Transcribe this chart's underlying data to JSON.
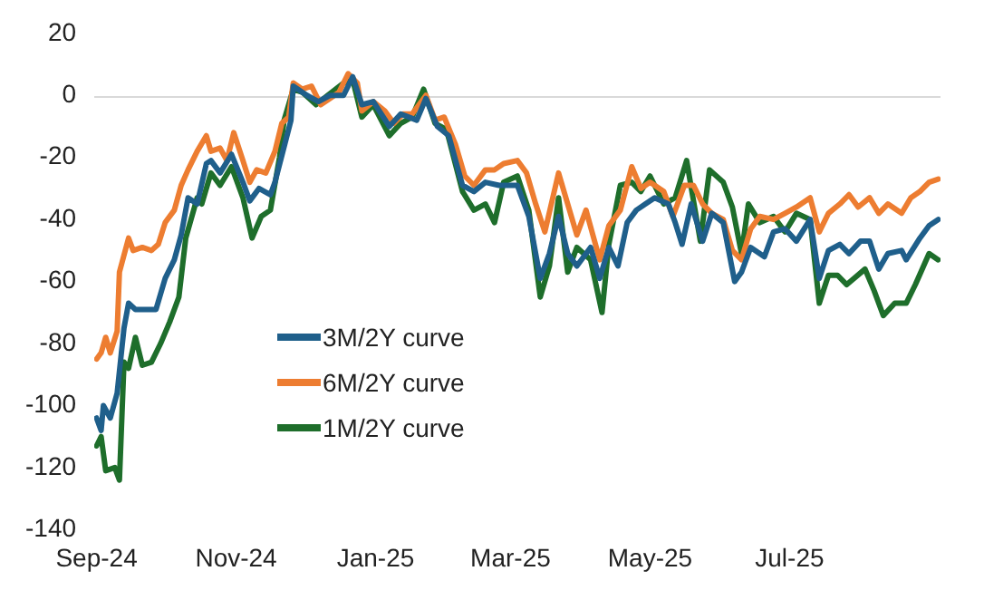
{
  "chart_data": {
    "type": "line",
    "xlim": [
      "2024-08-31",
      "2025-09-05"
    ],
    "xticks": [
      {
        "value": "2024-09-01",
        "label": "Sep-24"
      },
      {
        "value": "2024-11-01",
        "label": "Nov-24"
      },
      {
        "value": "2025-01-01",
        "label": "Jan-25"
      },
      {
        "value": "2025-03-01",
        "label": "Mar-25"
      },
      {
        "value": "2025-05-01",
        "label": "May-25"
      },
      {
        "value": "2025-07-01",
        "label": "Jul-25"
      }
    ],
    "ylim": [
      -140,
      20
    ],
    "yticks": [
      -140,
      -120,
      -100,
      -80,
      -60,
      -40,
      -20,
      0,
      20
    ],
    "grid": false,
    "ref_lines": [
      {
        "axis": "y",
        "value": 0,
        "color": "#d9d9d9"
      }
    ],
    "legend": "bottom left",
    "marker": "none",
    "line_style": "solid",
    "series": [
      {
        "name": "3M/2Y curve",
        "color": "#1f5f8b",
        "x": [
          "2024-09-01",
          "2024-09-03",
          "2024-09-04",
          "2024-09-07",
          "2024-09-10",
          "2024-09-13",
          "2024-09-15",
          "2024-09-18",
          "2024-09-23",
          "2024-09-27",
          "2024-10-01",
          "2024-10-05",
          "2024-10-08",
          "2024-10-11",
          "2024-10-15",
          "2024-10-19",
          "2024-10-21",
          "2024-10-25",
          "2024-10-30",
          "2024-11-04",
          "2024-11-07",
          "2024-11-11",
          "2024-11-16",
          "2024-11-18",
          "2024-11-25",
          "2024-11-26",
          "2024-12-02",
          "2024-12-07",
          "2024-12-12",
          "2024-12-18",
          "2024-12-22",
          "2024-12-26",
          "2024-12-31",
          "2025-01-07",
          "2025-01-12",
          "2025-01-19",
          "2025-01-23",
          "2025-01-28",
          "2025-02-02",
          "2025-02-08",
          "2025-02-13",
          "2025-02-18",
          "2025-02-24",
          "2025-03-04",
          "2025-03-09",
          "2025-03-14",
          "2025-03-18",
          "2025-03-22",
          "2025-03-26",
          "2025-03-30",
          "2025-04-05",
          "2025-04-09",
          "2025-04-13",
          "2025-04-17",
          "2025-04-21",
          "2025-04-25",
          "2025-04-29",
          "2025-05-03",
          "2025-05-09",
          "2025-05-12",
          "2025-05-15",
          "2025-05-19",
          "2025-05-24",
          "2025-05-28",
          "2025-06-02",
          "2025-06-07",
          "2025-06-10",
          "2025-06-14",
          "2025-06-20",
          "2025-06-24",
          "2025-06-29",
          "2025-07-04",
          "2025-07-10",
          "2025-07-14",
          "2025-07-18",
          "2025-07-23",
          "2025-07-27",
          "2025-08-01",
          "2025-08-05",
          "2025-08-09",
          "2025-08-13",
          "2025-08-19",
          "2025-08-21",
          "2025-08-27",
          "2025-08-31",
          "2025-09-04"
        ],
        "values": [
          -104,
          -108,
          -100,
          -104,
          -96,
          -75,
          -67,
          -69,
          -69,
          -69,
          -59,
          -53,
          -45,
          -33,
          -35,
          -22,
          -21,
          -25,
          -19,
          -28,
          -34,
          -30,
          -32,
          -28,
          -8,
          3,
          0,
          -2,
          0,
          0,
          6,
          -3,
          -2,
          -10,
          -6,
          -8,
          -1,
          -10,
          -13,
          -29,
          -31,
          -28,
          -29,
          -29,
          -39,
          -59,
          -51,
          -39,
          -51,
          -55,
          -49,
          -59,
          -49,
          -55,
          -41,
          -37,
          -35,
          -33,
          -35,
          -41,
          -48,
          -35,
          -47,
          -38,
          -41,
          -60,
          -57,
          -49,
          -52,
          -44,
          -43,
          -47,
          -40,
          -59,
          -50,
          -48,
          -51,
          -47,
          -47,
          -56,
          -51,
          -50,
          -53,
          -46,
          -42,
          -40
        ]
      },
      {
        "name": "6M/2Y curve",
        "color": "#ed7d31",
        "x": [
          "2024-09-01",
          "2024-09-03",
          "2024-09-05",
          "2024-09-07",
          "2024-09-10",
          "2024-09-11",
          "2024-09-15",
          "2024-09-17",
          "2024-09-21",
          "2024-09-25",
          "2024-09-28",
          "2024-10-01",
          "2024-10-05",
          "2024-10-08",
          "2024-10-11",
          "2024-10-15",
          "2024-10-19",
          "2024-10-21",
          "2024-10-25",
          "2024-10-28",
          "2024-10-31",
          "2024-11-04",
          "2024-11-07",
          "2024-11-10",
          "2024-11-14",
          "2024-11-18",
          "2024-11-21",
          "2024-11-24",
          "2024-11-26",
          "2024-11-30",
          "2024-12-04",
          "2024-12-08",
          "2024-12-12",
          "2024-12-16",
          "2024-12-20",
          "2024-12-24",
          "2024-12-26",
          "2024-12-31",
          "2025-01-05",
          "2025-01-09",
          "2025-01-13",
          "2025-01-17",
          "2025-01-23",
          "2025-01-27",
          "2025-01-31",
          "2025-02-05",
          "2025-02-09",
          "2025-02-13",
          "2025-02-18",
          "2025-02-22",
          "2025-02-26",
          "2025-03-04",
          "2025-03-08",
          "2025-03-12",
          "2025-03-16",
          "2025-03-22",
          "2025-03-26",
          "2025-03-30",
          "2025-04-03",
          "2025-04-09",
          "2025-04-13",
          "2025-04-18",
          "2025-04-23",
          "2025-04-27",
          "2025-05-01",
          "2025-05-07",
          "2025-05-11",
          "2025-05-16",
          "2025-05-20",
          "2025-05-24",
          "2025-05-28",
          "2025-06-02",
          "2025-06-06",
          "2025-06-10",
          "2025-06-14",
          "2025-06-18",
          "2025-06-24",
          "2025-06-29",
          "2025-07-04",
          "2025-07-10",
          "2025-07-14",
          "2025-07-18",
          "2025-07-23",
          "2025-07-27",
          "2025-07-31",
          "2025-08-05",
          "2025-08-09",
          "2025-08-13",
          "2025-08-19",
          "2025-08-23",
          "2025-08-27",
          "2025-08-31",
          "2025-09-04"
        ],
        "values": [
          -85,
          -83,
          -78,
          -83,
          -76,
          -57,
          -46,
          -50,
          -49,
          -50,
          -48,
          -41,
          -37,
          -29,
          -24,
          -18,
          -13,
          -18,
          -17,
          -21,
          -12,
          -21,
          -28,
          -24,
          -25,
          -18,
          -9,
          -7,
          4,
          2,
          3,
          -3,
          -1,
          1,
          7,
          4,
          -5,
          -2,
          -5,
          -9,
          -6,
          -6,
          0,
          -8,
          -7,
          -16,
          -26,
          -29,
          -24,
          -24,
          -22,
          -21,
          -25,
          -35,
          -44,
          -25,
          -35,
          -45,
          -37,
          -53,
          -42,
          -37,
          -23,
          -30,
          -28,
          -31,
          -39,
          -29,
          -29,
          -35,
          -38,
          -40,
          -50,
          -53,
          -43,
          -39,
          -40,
          -38,
          -36,
          -33,
          -44,
          -38,
          -35,
          -32,
          -36,
          -33,
          -38,
          -35,
          -38,
          -33,
          -31,
          -28,
          -27
        ]
      },
      {
        "name": "1M/2Y curve",
        "color": "#1e6e2b",
        "x": [
          "2024-09-01",
          "2024-09-03",
          "2024-09-05",
          "2024-09-09",
          "2024-09-11",
          "2024-09-13",
          "2024-09-15",
          "2024-09-18",
          "2024-09-21",
          "2024-09-25",
          "2024-09-29",
          "2024-10-03",
          "2024-10-07",
          "2024-10-10",
          "2024-10-15",
          "2024-10-17",
          "2024-10-21",
          "2024-10-25",
          "2024-10-30",
          "2024-11-04",
          "2024-11-08",
          "2024-11-12",
          "2024-11-16",
          "2024-11-20",
          "2024-11-22",
          "2024-11-26",
          "2024-11-30",
          "2024-12-06",
          "2024-12-11",
          "2024-12-18",
          "2024-12-22",
          "2024-12-26",
          "2024-12-31",
          "2025-01-07",
          "2025-01-12",
          "2025-01-17",
          "2025-01-22",
          "2025-01-27",
          "2025-02-01",
          "2025-02-08",
          "2025-02-13",
          "2025-02-18",
          "2025-02-22",
          "2025-02-26",
          "2025-03-04",
          "2025-03-09",
          "2025-03-14",
          "2025-03-18",
          "2025-03-22",
          "2025-03-26",
          "2025-03-30",
          "2025-04-05",
          "2025-04-10",
          "2025-04-13",
          "2025-04-18",
          "2025-04-23",
          "2025-04-27",
          "2025-05-01",
          "2025-05-07",
          "2025-05-12",
          "2025-05-17",
          "2025-05-23",
          "2025-05-27",
          "2025-06-02",
          "2025-06-06",
          "2025-06-10",
          "2025-06-13",
          "2025-06-18",
          "2025-06-24",
          "2025-06-29",
          "2025-07-04",
          "2025-07-10",
          "2025-07-14",
          "2025-07-18",
          "2025-07-22",
          "2025-07-26",
          "2025-08-03",
          "2025-08-07",
          "2025-08-11",
          "2025-08-16",
          "2025-08-21",
          "2025-08-25",
          "2025-08-31",
          "2025-09-04"
        ],
        "values": [
          -113,
          -110,
          -121,
          -120,
          -124,
          -86,
          -88,
          -78,
          -87,
          -86,
          -80,
          -73,
          -65,
          -46,
          -33,
          -35,
          -25,
          -29,
          -23,
          -33,
          -46,
          -39,
          -37,
          -20,
          -8,
          2,
          1,
          -3,
          0,
          4,
          5,
          -7,
          -3,
          -13,
          -9,
          -7,
          2,
          -9,
          -11,
          -31,
          -37,
          -35,
          -41,
          -28,
          -26,
          -37,
          -65,
          -55,
          -33,
          -57,
          -49,
          -53,
          -70,
          -48,
          -29,
          -28,
          -31,
          -26,
          -35,
          -33,
          -21,
          -47,
          -24,
          -28,
          -36,
          -51,
          -35,
          -41,
          -39,
          -44,
          -38,
          -40,
          -67,
          -58,
          -58,
          -61,
          -56,
          -63,
          -71,
          -67,
          -67,
          -61,
          -51,
          -53
        ]
      }
    ]
  }
}
